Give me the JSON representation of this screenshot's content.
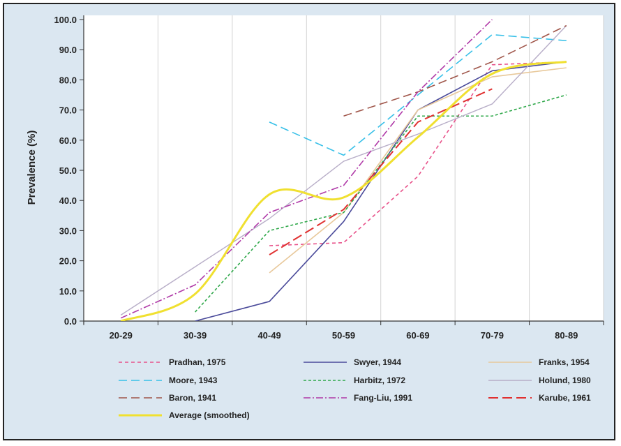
{
  "chart_data": {
    "type": "line",
    "ylabel": "Prevalence (%)",
    "xlabel": "",
    "title": "",
    "categories": [
      "20-29",
      "30-39",
      "40-49",
      "50-59",
      "60-69",
      "70-79",
      "80-89"
    ],
    "ylim": [
      0,
      100
    ],
    "yticks": [
      "0.0",
      "10.0",
      "20.0",
      "30.0",
      "40.0",
      "50.0",
      "60.0",
      "70.0",
      "80.0",
      "90.0",
      "100.0"
    ],
    "grid": "vertical",
    "legend_position": "bottom",
    "series": [
      {
        "name": "Pradhan, 1975",
        "color": "#e8528a",
        "dash": "5,4",
        "width": 1.6,
        "values": [
          null,
          null,
          25,
          26,
          48,
          85,
          86
        ]
      },
      {
        "name": "Swyer, 1944",
        "color": "#4a4a9a",
        "dash": "",
        "width": 1.6,
        "values": [
          null,
          0,
          6.5,
          33,
          70,
          83,
          86
        ]
      },
      {
        "name": "Franks, 1954",
        "color": "#e8c89a",
        "dash": "",
        "width": 1.6,
        "values": [
          null,
          null,
          16,
          36,
          70,
          81,
          84
        ]
      },
      {
        "name": "Moore, 1943",
        "color": "#38c0e8",
        "dash": "12,6",
        "width": 1.6,
        "values": [
          null,
          null,
          66,
          55,
          75,
          95,
          93
        ]
      },
      {
        "name": "Harbitz, 1972",
        "color": "#2fa84a",
        "dash": "4,3",
        "width": 1.6,
        "values": [
          null,
          3,
          30,
          36,
          68,
          68,
          75
        ]
      },
      {
        "name": "Holund, 1980",
        "color": "#b8aec8",
        "dash": "",
        "width": 1.4,
        "values": [
          2,
          18,
          34,
          53,
          62,
          72,
          98
        ]
      },
      {
        "name": "Baron, 1941",
        "color": "#a0564a",
        "dash": "12,6",
        "width": 1.6,
        "values": [
          null,
          null,
          null,
          68,
          76,
          86,
          98
        ]
      },
      {
        "name": "Fang-Liu, 1991",
        "color": "#b03aa8",
        "dash": "10,3,2,3",
        "width": 1.6,
        "values": [
          1,
          12,
          36,
          45,
          76,
          100,
          null
        ]
      },
      {
        "name": "Karube, 1961",
        "color": "#e03030",
        "dash": "14,6",
        "width": 2,
        "values": [
          null,
          null,
          22,
          37,
          66,
          77,
          null
        ]
      },
      {
        "name": "Average (smoothed)",
        "color": "#f0e030",
        "dash": "",
        "width": 3,
        "smooth": true,
        "values": [
          0,
          9,
          42,
          41,
          61,
          82,
          86
        ]
      }
    ]
  }
}
